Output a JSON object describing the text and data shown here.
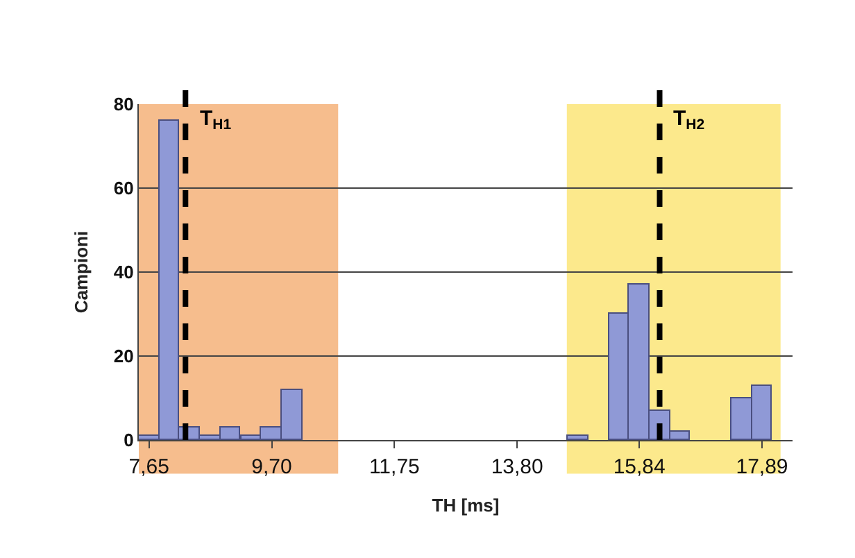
{
  "chart_data": {
    "type": "bar",
    "xlabel": "TH [ms]",
    "ylabel": "Campioni",
    "x": [
      7.65,
      7.99,
      8.33,
      8.67,
      9.01,
      9.36,
      9.7,
      10.04,
      14.82,
      15.5,
      15.84,
      16.18,
      16.52,
      17.55,
      17.89
    ],
    "values": [
      1,
      76,
      3,
      1,
      3,
      1,
      3,
      12,
      1,
      30,
      37,
      7,
      2,
      10,
      13
    ],
    "color": "#8f99d6",
    "xlim": [
      7.48,
      18.4
    ],
    "xticks": [
      {
        "value": 7.65,
        "label": "7,65"
      },
      {
        "value": 9.7,
        "label": "9,70"
      },
      {
        "value": 11.75,
        "label": "11,75"
      },
      {
        "value": 13.8,
        "label": "13,80"
      },
      {
        "value": 15.84,
        "label": "15,84"
      },
      {
        "value": 17.89,
        "label": "17,89"
      }
    ],
    "ylim": [
      0,
      80
    ],
    "yticks": [
      0,
      20,
      40,
      60,
      80
    ],
    "grid": "y",
    "ref_lines": [
      {
        "axis": "x",
        "value": 8.26,
        "label": "T$_{H1}$",
        "color": "#000000",
        "line_style": "dashed"
      },
      {
        "axis": "x",
        "value": 16.18,
        "label": "T$_{H2}$",
        "color": "#000000",
        "line_style": "dashed"
      }
    ],
    "bands": [
      {
        "axis": "x",
        "from": 7.48,
        "to": 10.81,
        "color": "#f6bd8d"
      },
      {
        "axis": "x",
        "from": 14.63,
        "to": 18.2,
        "color": "#fce98c"
      }
    ]
  }
}
